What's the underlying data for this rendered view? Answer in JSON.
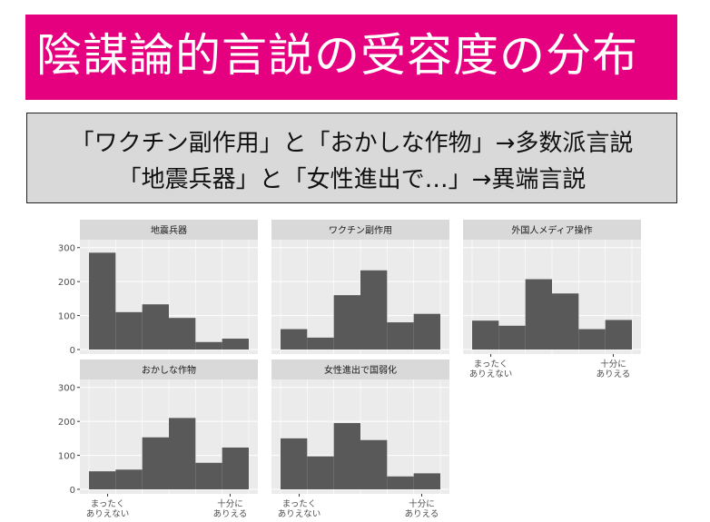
{
  "title": "陰謀論的言説の受容度の分布",
  "summary": {
    "line1": "「ワクチン副作用」と「おかしな作物」→多数派言説",
    "line2": "「地震兵器」と「女性進出で…」→異端言説"
  },
  "colors": {
    "title_bg": "#e5007f",
    "summary_bg": "#d9d9d9",
    "panel_bg": "#ebebeb",
    "strip_bg": "#d9d9d9",
    "bar": "#595959",
    "grid": "#ffffff"
  },
  "chart_data": {
    "type": "bar",
    "layout": "facet_wrap",
    "ylim": [
      0,
      310
    ],
    "yticks": [
      0,
      100,
      200,
      300
    ],
    "bins": 6,
    "x_tick_labels": {
      "left": [
        "まったく",
        "ありえない"
      ],
      "right": [
        "十分に",
        "ありえる"
      ]
    },
    "panels": [
      {
        "name": "地震兵器",
        "values": [
          285,
          110,
          133,
          93,
          22,
          32
        ]
      },
      {
        "name": "ワクチン副作用",
        "values": [
          60,
          35,
          160,
          233,
          80,
          105
        ]
      },
      {
        "name": "外国人メディア操作",
        "values": [
          85,
          70,
          207,
          165,
          60,
          87
        ]
      },
      {
        "name": "おかしな作物",
        "values": [
          53,
          58,
          153,
          210,
          78,
          123
        ]
      },
      {
        "name": "女性進出で国弱化",
        "values": [
          150,
          97,
          195,
          145,
          38,
          47
        ]
      }
    ]
  }
}
